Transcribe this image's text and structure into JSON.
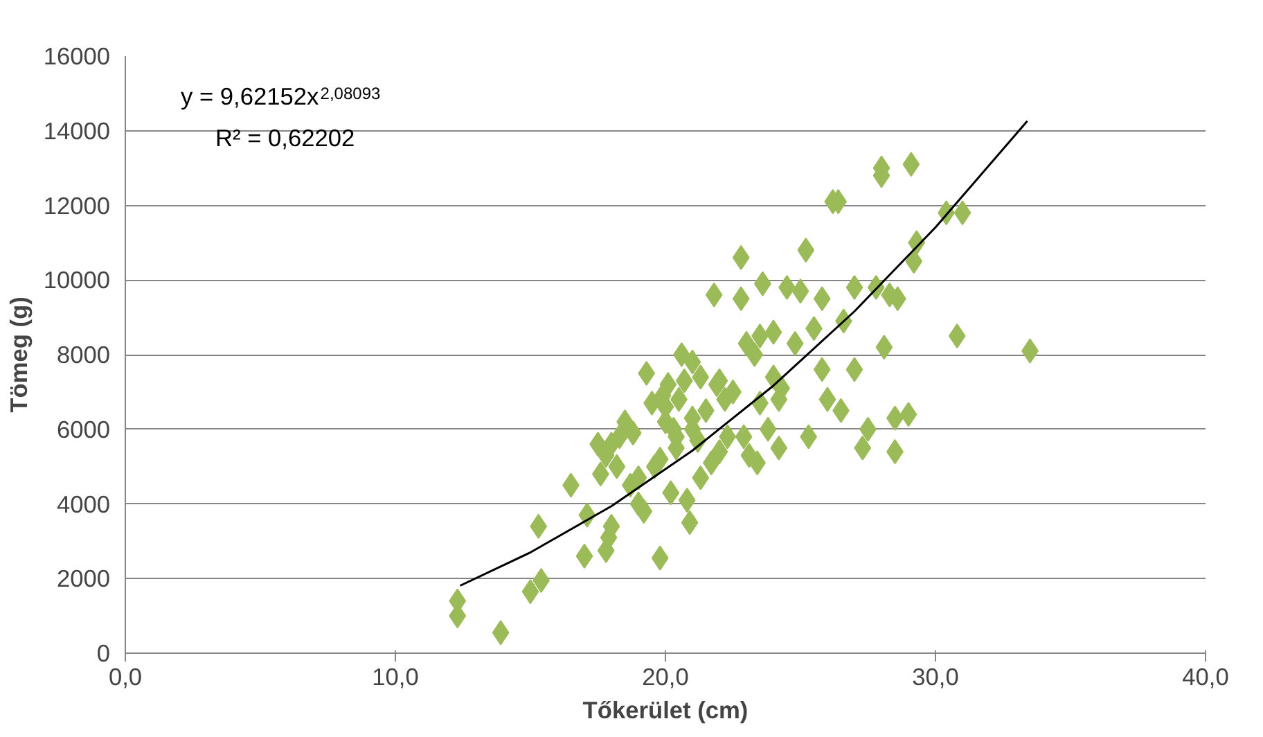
{
  "chart_data": {
    "type": "scatter",
    "xlabel": "Tőkerület (cm)",
    "ylabel": "Tömeg (g)",
    "xlim": [
      0,
      40
    ],
    "ylim": [
      0,
      16000
    ],
    "xticks": [
      {
        "value": 0,
        "label": "0,0"
      },
      {
        "value": 10,
        "label": "10,0"
      },
      {
        "value": 20,
        "label": "20,0"
      },
      {
        "value": 30,
        "label": "30,0"
      },
      {
        "value": 40,
        "label": "40,0"
      }
    ],
    "yticks": [
      0,
      2000,
      4000,
      6000,
      8000,
      10000,
      12000,
      14000,
      16000
    ],
    "grid": "y",
    "marker": "diamond",
    "annotations": [
      "y = 9,62152x$^{2,08093}$",
      "R² = 0,62202"
    ],
    "series": [
      {
        "color": "#9bbb59",
        "x": [
          12.3,
          12.3,
          13.9,
          15.0,
          15.4,
          15.3,
          16.5,
          17.0,
          17.1,
          17.5,
          17.6,
          17.8,
          17.9,
          18.0,
          17.8,
          18.0,
          18.2,
          18.5,
          18.3,
          18.7,
          19.0,
          19.2,
          19.3,
          19.5,
          19.6,
          19.8,
          19.8,
          19.9,
          20.0,
          20.1,
          20.2,
          20.3,
          20.4,
          20.5,
          20.6,
          20.7,
          20.8,
          20.9,
          21.0,
          21.0,
          21.2,
          21.3,
          21.5,
          21.7,
          21.8,
          21.9,
          22.0,
          22.2,
          22.5,
          22.8,
          22.8,
          22.9,
          23.0,
          23.1,
          23.3,
          23.4,
          23.5,
          23.6,
          23.8,
          24.0,
          24.0,
          24.2,
          24.2,
          24.3,
          24.8,
          25.0,
          25.2,
          25.3,
          25.5,
          25.8,
          25.8,
          26.0,
          26.2,
          26.4,
          26.5,
          26.6,
          27.0,
          27.0,
          27.3,
          27.5,
          27.8,
          28.0,
          28.0,
          28.1,
          28.3,
          28.5,
          28.5,
          28.6,
          29.0,
          29.1,
          29.2,
          29.3,
          30.4,
          30.8,
          31.0,
          33.5,
          19.0,
          20.0,
          21.3,
          22.3,
          23.5,
          20.4,
          18.8,
          21.0,
          22.0,
          24.5
        ],
        "values": [
          1400,
          1000,
          550,
          1650,
          1950,
          3400,
          4500,
          2600,
          3700,
          5600,
          4800,
          2750,
          3100,
          3400,
          5300,
          5600,
          5000,
          6200,
          5800,
          4500,
          4000,
          3800,
          7500,
          6700,
          5000,
          2550,
          5200,
          6900,
          6200,
          7200,
          4300,
          6000,
          5500,
          6800,
          8000,
          7300,
          4100,
          3500,
          6300,
          7800,
          5700,
          7400,
          6500,
          5100,
          9600,
          7200,
          5400,
          6800,
          7000,
          10600,
          9500,
          5800,
          8300,
          5300,
          8000,
          5100,
          8500,
          9900,
          6000,
          7400,
          8600,
          5500,
          6800,
          7100,
          8300,
          9700,
          10800,
          5800,
          8700,
          9500,
          7600,
          6800,
          12100,
          12100,
          6500,
          8900,
          9800,
          7600,
          5500,
          6000,
          9800,
          12800,
          13000,
          8200,
          9600,
          5400,
          6300,
          9500,
          6400,
          13100,
          10500,
          11000,
          11800,
          8500,
          11800,
          8100,
          4700,
          6600,
          4700,
          5800,
          6700,
          5800,
          5900,
          6000,
          7300,
          9800
        ]
      },
      {
        "type": "line",
        "color": "#000000",
        "marker": "none",
        "x": [
          12.4,
          15,
          18,
          21,
          24,
          27,
          30,
          33.4
        ],
        "values": [
          1810,
          2700,
          3940,
          5430,
          7170,
          9160,
          11410,
          14260
        ]
      }
    ]
  }
}
